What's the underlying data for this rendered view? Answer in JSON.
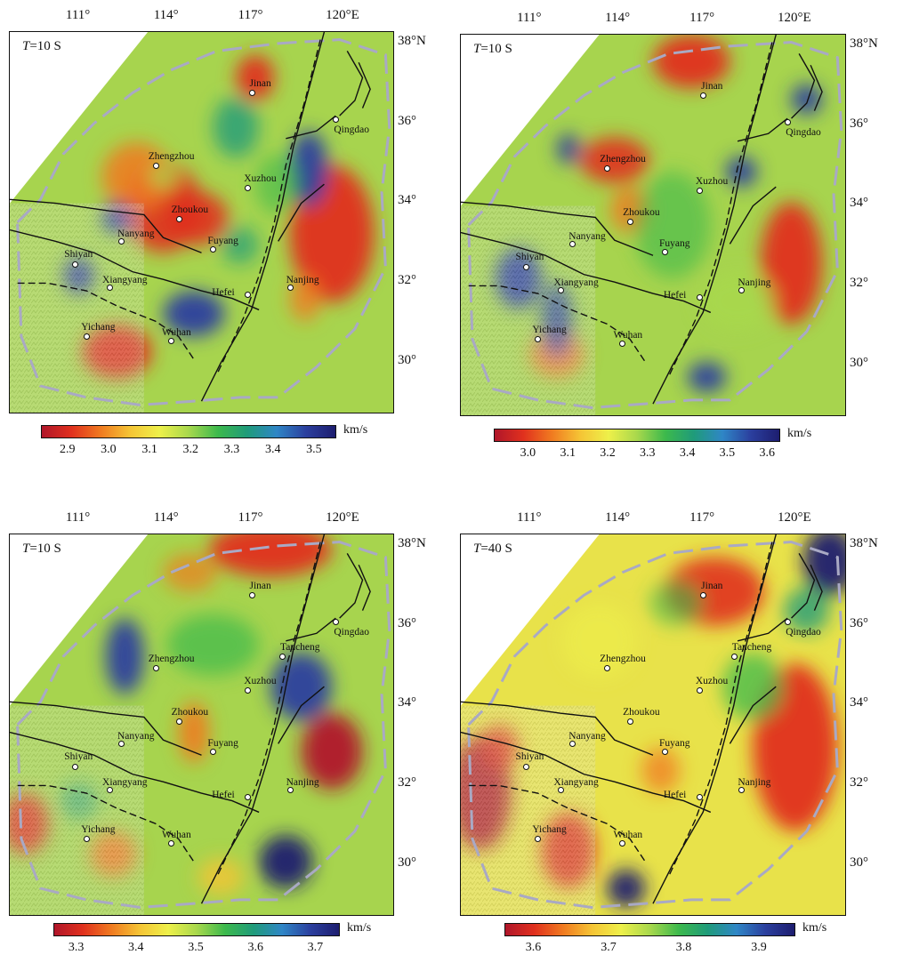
{
  "panels": [
    {
      "period_italic": "T",
      "period_rest": "=10 S",
      "lon_labels": [
        "111°",
        "114°",
        "117°",
        "120°E"
      ],
      "lat_labels": [
        "38°N",
        "36°",
        "34°",
        "32°",
        "30°"
      ],
      "cities": {
        "jinan": "Jinan",
        "qingdao": "Qingdao",
        "zhengzhou": "Zhengzhou",
        "xuzhou": "Xuzhou",
        "zhoukou": "Zhoukou",
        "nanyang": "Nanyang",
        "fuyang": "Fuyang",
        "shiyan": "Shiyan",
        "xiangyang": "Xiangyang",
        "nanjing": "Nanjing",
        "hefei": "Hefei",
        "yichang": "Yichang",
        "wuhan": "Wuhan",
        "tancheng": ""
      },
      "colorbar": {
        "ticks": [
          "2.9",
          "3.0",
          "3.1",
          "3.2",
          "3.3",
          "3.4",
          "3.5"
        ],
        "unit": "km/s",
        "colors": [
          "#b0162a",
          "#e0301e",
          "#f07a20",
          "#f5c435",
          "#eef04a",
          "#a8d84c",
          "#3cb94c",
          "#1f9b7a",
          "#2f86c6",
          "#2b3f9e",
          "#1d1d6f"
        ]
      }
    },
    {
      "period_italic": "T",
      "period_rest": "=10 S",
      "lon_labels": [
        "111°",
        "114°",
        "117°",
        "120°E"
      ],
      "lat_labels": [
        "38°N",
        "36°",
        "34°",
        "32°",
        "30°"
      ],
      "cities": {
        "jinan": "Jinan",
        "qingdao": "Qingdao",
        "zhengzhou": "Zhengzhou",
        "xuzhou": "Xuzhou",
        "zhoukou": "Zhoukou",
        "nanyang": "Nanyang",
        "fuyang": "Fuyang",
        "shiyan": "Shiyan",
        "xiangyang": "Xiangyang",
        "nanjing": "Nanjing",
        "hefei": "Hefei",
        "yichang": "Yichang",
        "wuhan": "Wuhan",
        "tancheng": ""
      },
      "colorbar": {
        "ticks": [
          "3.0",
          "3.1",
          "3.2",
          "3.3",
          "3.4",
          "3.5",
          "3.6"
        ],
        "unit": "km/s",
        "colors": [
          "#b0162a",
          "#e0301e",
          "#f07a20",
          "#f5c435",
          "#eef04a",
          "#a8d84c",
          "#3cb94c",
          "#1f9b7a",
          "#2f86c6",
          "#2b3f9e",
          "#1d1d6f"
        ]
      }
    },
    {
      "period_italic": "T",
      "period_rest": "=10 S",
      "lon_labels": [
        "111°",
        "114°",
        "117°",
        "120°E"
      ],
      "lat_labels": [
        "38°N",
        "36°",
        "34°",
        "32°",
        "30°"
      ],
      "cities": {
        "jinan": "Jinan",
        "qingdao": "Qingdao",
        "zhengzhou": "Zhengzhou",
        "xuzhou": "Xuzhou",
        "zhoukou": "Zhoukou",
        "nanyang": "Nanyang",
        "fuyang": "Fuyang",
        "shiyan": "Shiyan",
        "xiangyang": "Xiangyang",
        "nanjing": "Nanjing",
        "hefei": "Hefei",
        "yichang": "Yichang",
        "wuhan": "Wuhan",
        "tancheng": "Tancheng"
      },
      "colorbar": {
        "ticks": [
          "3.3",
          "3.4",
          "3.5",
          "3.6",
          "3.7"
        ],
        "unit": "km/s",
        "colors": [
          "#b0162a",
          "#e0301e",
          "#f07a20",
          "#f5c435",
          "#eef04a",
          "#a8d84c",
          "#3cb94c",
          "#1f9b7a",
          "#2f86c6",
          "#2b3f9e",
          "#1d1d6f"
        ]
      }
    },
    {
      "period_italic": "T",
      "period_rest": "=40 S",
      "lon_labels": [
        "111°",
        "114°",
        "117°",
        "120°E"
      ],
      "lat_labels": [
        "38°N",
        "36°",
        "34°",
        "32°",
        "30°"
      ],
      "cities": {
        "jinan": "Jinan",
        "qingdao": "Qingdao",
        "zhengzhou": "Zhengzhou",
        "xuzhou": "Xuzhou",
        "zhoukou": "Zhoukou",
        "nanyang": "Nanyang",
        "fuyang": "Fuyang",
        "shiyan": "Shiyan",
        "xiangyang": "Xiangyang",
        "nanjing": "Nanjing",
        "hefei": "Hefei",
        "yichang": "Yichang",
        "wuhan": "Wuhan",
        "tancheng": "Tancheng"
      },
      "colorbar": {
        "ticks": [
          "3.6",
          "3.7",
          "3.8",
          "3.9"
        ],
        "unit": "km/s",
        "colors": [
          "#b0162a",
          "#e0301e",
          "#f07a20",
          "#f5c435",
          "#eef04a",
          "#a8d84c",
          "#3cb94c",
          "#1f9b7a",
          "#2f86c6",
          "#2b3f9e",
          "#1d1d6f"
        ]
      }
    }
  ]
}
